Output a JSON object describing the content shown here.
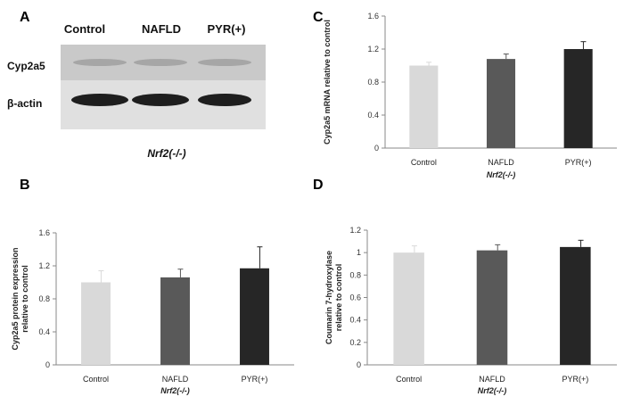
{
  "panels": {
    "A": {
      "letter": "A",
      "lanes": [
        "Control",
        "NAFLD",
        "PYR(+)"
      ],
      "rows": [
        "Cyp2a5",
        "β-actin"
      ],
      "subtitle": "Nrf2(-/-)"
    },
    "B": {
      "letter": "B"
    },
    "C": {
      "letter": "C"
    },
    "D": {
      "letter": "D"
    }
  },
  "chart_data": [
    {
      "panel": "C",
      "type": "bar",
      "categories": [
        "Control",
        "NAFLD",
        "PYR(+)"
      ],
      "values": [
        1.0,
        1.08,
        1.2
      ],
      "errors": [
        0.04,
        0.06,
        0.09
      ],
      "colors": [
        "#d9d9d9",
        "#595959",
        "#262626"
      ],
      "ylabel": "Cyp2a5 mRNA relative to control",
      "ylabel_lines": [
        "Cyp2a5 mRNA relative to control"
      ],
      "xlabel": "Nrf2(-/-)",
      "ylim": [
        0,
        1.6
      ],
      "yticks": [
        "0",
        "0.4",
        "0.8",
        "1.2",
        "1.6"
      ],
      "ytick_values": [
        0,
        0.4,
        0.8,
        1.2,
        1.6
      ]
    },
    {
      "panel": "B",
      "type": "bar",
      "categories": [
        "Control",
        "NAFLD",
        "PYR(+)"
      ],
      "values": [
        1.0,
        1.06,
        1.17
      ],
      "errors": [
        0.14,
        0.1,
        0.26
      ],
      "colors": [
        "#d9d9d9",
        "#595959",
        "#262626"
      ],
      "ylabel": "Cyp2a5 protein expression relative to control",
      "ylabel_lines": [
        "Cyp2a5 protein expression",
        "relative to control"
      ],
      "xlabel": "Nrf2(-/-)",
      "ylim": [
        0,
        1.6
      ],
      "yticks": [
        "0",
        "0.4",
        "0.8",
        "1.2",
        "1.6"
      ],
      "ytick_values": [
        0,
        0.4,
        0.8,
        1.2,
        1.6
      ]
    },
    {
      "panel": "D",
      "type": "bar",
      "categories": [
        "Control",
        "NAFLD",
        "PYR(+)"
      ],
      "values": [
        1.0,
        1.02,
        1.05
      ],
      "errors": [
        0.06,
        0.05,
        0.06
      ],
      "colors": [
        "#d9d9d9",
        "#595959",
        "#262626"
      ],
      "ylabel": "Coumarin 7-hydroxylase relative to control",
      "ylabel_lines": [
        "Coumarin 7-hydroxylase",
        "relative to control"
      ],
      "xlabel": "Nrf2(-/-)",
      "ylim": [
        0,
        1.2
      ],
      "yticks": [
        "0",
        "0.2",
        "0.4",
        "0.6",
        "0.8",
        "1",
        "1.2"
      ],
      "ytick_values": [
        0,
        0.2,
        0.4,
        0.6,
        0.8,
        1,
        1.2
      ]
    }
  ]
}
